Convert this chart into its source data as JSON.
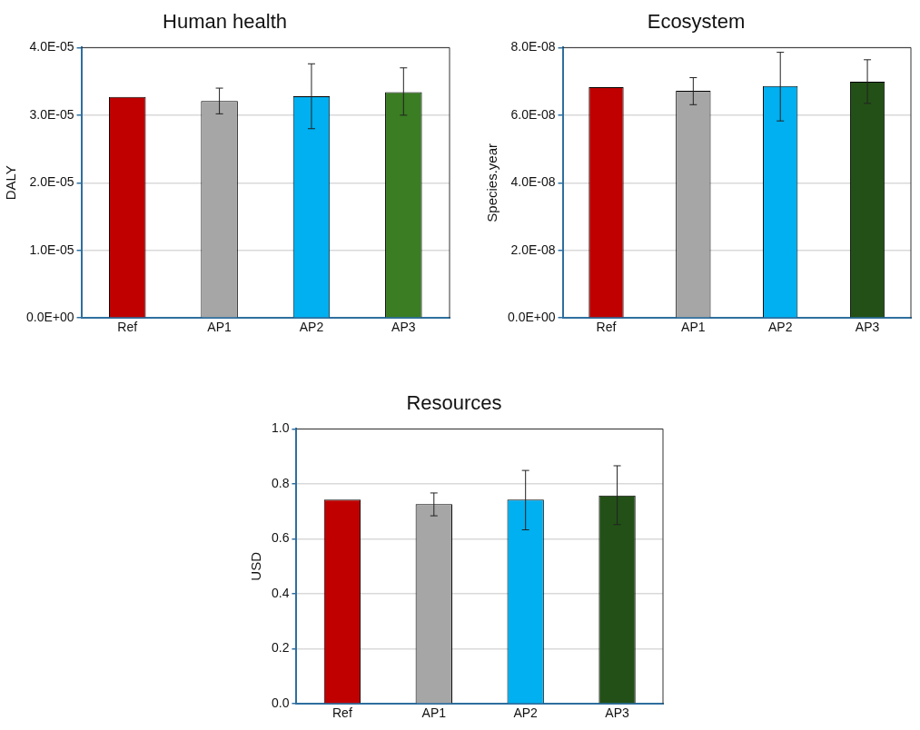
{
  "chart_data": [
    {
      "type": "bar",
      "title": "Human health",
      "ylabel": "DALY",
      "categories": [
        "Ref",
        "AP1",
        "AP2",
        "AP3"
      ],
      "values": [
        3.27e-05,
        3.21e-05,
        3.28e-05,
        3.34e-05
      ],
      "colors": [
        "#c00000",
        "#a6a6a6",
        "#00b0f0",
        "#3a7d22"
      ],
      "errors": [
        null,
        [
          3.02e-05,
          3.4e-05
        ],
        [
          2.8e-05,
          3.76e-05
        ],
        [
          3e-05,
          3.7e-05
        ]
      ],
      "ylim": [
        0,
        4e-05
      ],
      "yticks": [
        {
          "value": 0,
          "label": "0.0E+00"
        },
        {
          "value": 1e-05,
          "label": "1.0E-05"
        },
        {
          "value": 2e-05,
          "label": "2.0E-05"
        },
        {
          "value": 3e-05,
          "label": "3.0E-05"
        },
        {
          "value": 4e-05,
          "label": "4.0E-05"
        }
      ],
      "grid": "y",
      "legend": false
    },
    {
      "type": "bar",
      "title": "Ecosystem",
      "ylabel": "Species.year",
      "categories": [
        "Ref",
        "AP1",
        "AP2",
        "AP3"
      ],
      "values": [
        6.83e-08,
        6.72e-08,
        6.86e-08,
        6.99e-08
      ],
      "colors": [
        "#c00000",
        "#a6a6a6",
        "#00b0f0",
        "#235016"
      ],
      "errors": [
        null,
        [
          6.31e-08,
          7.11e-08
        ],
        [
          5.83e-08,
          7.86e-08
        ],
        [
          6.35e-08,
          7.64e-08
        ]
      ],
      "ylim": [
        0,
        8e-08
      ],
      "yticks": [
        {
          "value": 0,
          "label": "0.0E+00"
        },
        {
          "value": 2e-08,
          "label": "2.0E-08"
        },
        {
          "value": 4e-08,
          "label": "4.0E-08"
        },
        {
          "value": 6e-08,
          "label": "6.0E-08"
        },
        {
          "value": 8e-08,
          "label": "8.0E-08"
        }
      ],
      "grid": "y",
      "legend": false
    },
    {
      "type": "bar",
      "title": "Resources",
      "ylabel": "USD",
      "categories": [
        "Ref",
        "AP1",
        "AP2",
        "AP3"
      ],
      "values": [
        0.743,
        0.726,
        0.743,
        0.758
      ],
      "colors": [
        "#c00000",
        "#a6a6a6",
        "#00b0f0",
        "#235016"
      ],
      "errors": [
        null,
        [
          0.684,
          0.767
        ],
        [
          0.633,
          0.849
        ],
        [
          0.652,
          0.866
        ]
      ],
      "ylim": [
        0,
        1
      ],
      "yticks": [
        {
          "value": 0,
          "label": "0.0"
        },
        {
          "value": 0.2,
          "label": "0.2"
        },
        {
          "value": 0.4,
          "label": "0.4"
        },
        {
          "value": 0.6,
          "label": "0.6"
        },
        {
          "value": 0.8,
          "label": "0.8"
        },
        {
          "value": 1,
          "label": "1.0"
        }
      ],
      "grid": "y",
      "legend": false
    }
  ]
}
